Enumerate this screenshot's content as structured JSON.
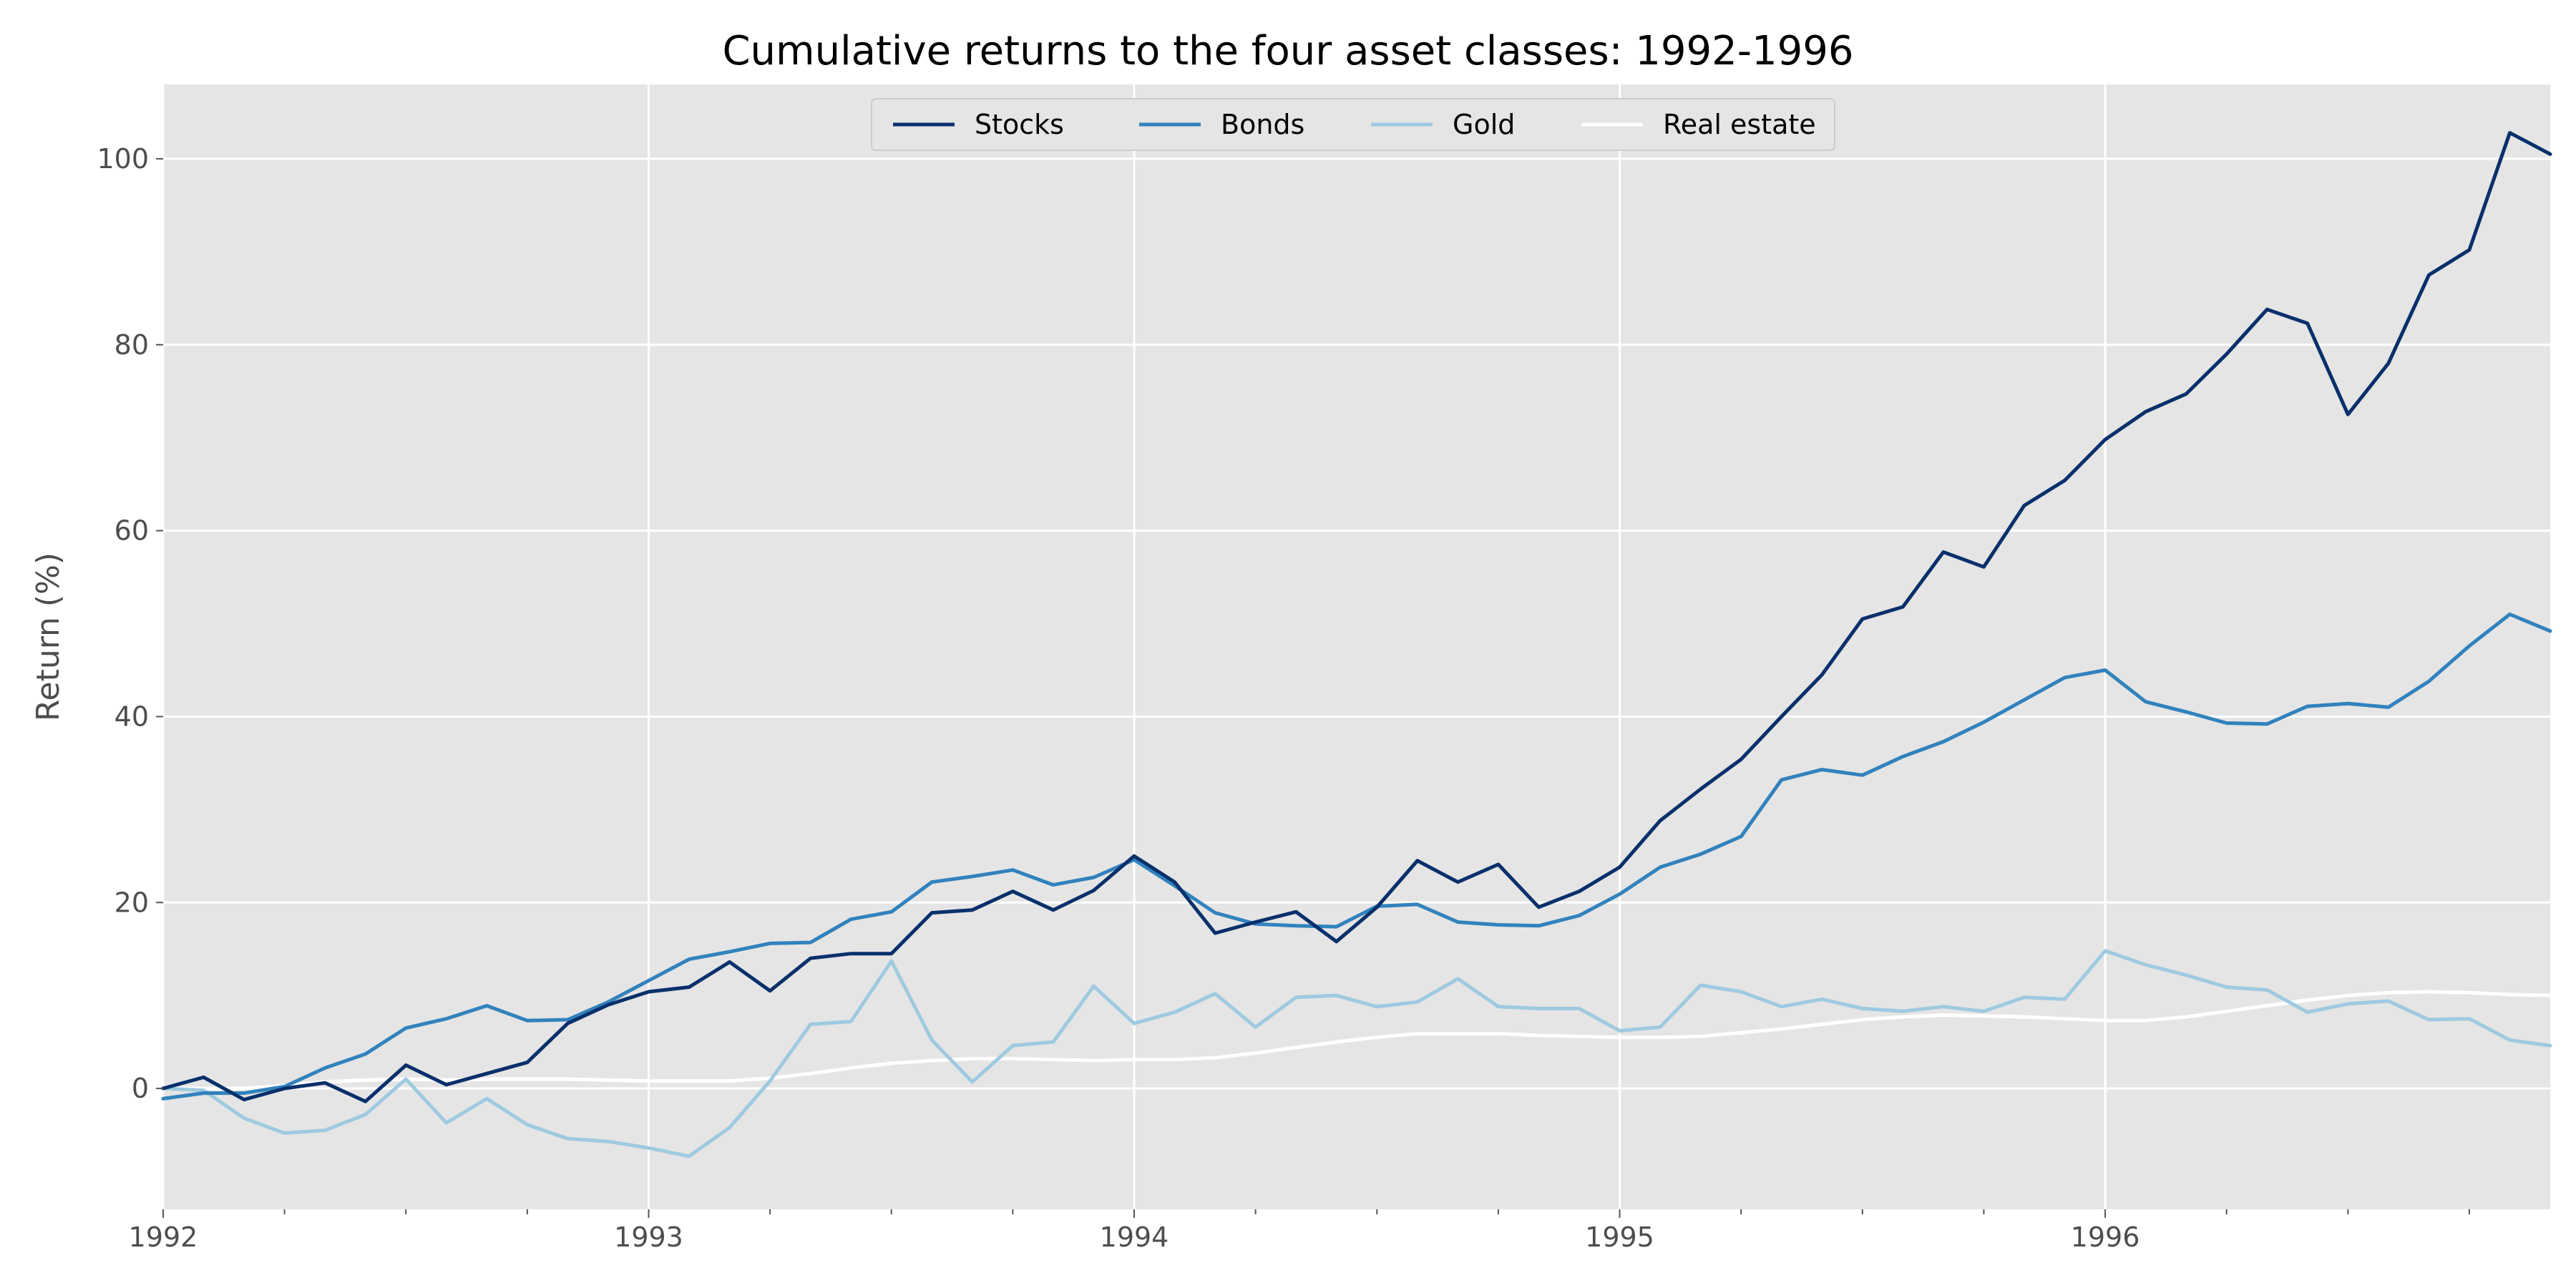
{
  "chart_data": {
    "type": "line",
    "title": "Cumulative returns to the four asset classes: 1992-1996",
    "xlabel": "",
    "ylabel": "Return (%)",
    "x_start": "1992-01",
    "x_end": "1996-12",
    "xlim": [
      "1992-01",
      "1996-12"
    ],
    "ylim": [
      -13,
      108
    ],
    "x_ticks": [
      "1992",
      "1993",
      "1994",
      "1995",
      "1996"
    ],
    "y_ticks": [
      0,
      20,
      40,
      60,
      80,
      100
    ],
    "grid": true,
    "legend": {
      "placement": "top-center",
      "columns": 4
    },
    "series": [
      {
        "name": "Stocks",
        "color": "#08306b",
        "values": [
          0,
          1.2,
          -1.2,
          0,
          0.6,
          -1.4,
          2.5,
          0.4,
          1.6,
          2.8,
          7.0,
          9.0,
          10.4,
          10.9,
          13.6,
          10.5,
          14.0,
          14.5,
          14.5,
          18.9,
          19.2,
          21.2,
          19.2,
          21.3,
          25.0,
          22.2,
          16.7,
          17.9,
          19.0,
          15.8,
          19.5,
          24.5,
          22.2,
          24.1,
          19.5,
          21.2,
          23.8,
          28.8,
          32.2,
          35.4,
          40.0,
          44.5,
          50.5,
          51.8,
          57.7,
          56.1,
          62.7,
          65.4,
          69.8,
          72.8,
          74.7,
          79.0,
          83.8,
          82.3,
          72.5,
          78.0,
          87.5,
          90.2,
          102.8,
          100.5
        ]
      },
      {
        "name": "Bonds",
        "color": "#3182bd",
        "values": [
          -1.1,
          -0.5,
          -0.5,
          0.2,
          2.2,
          3.7,
          6.5,
          7.5,
          8.9,
          7.3,
          7.4,
          9.3,
          11.6,
          13.9,
          14.7,
          15.6,
          15.7,
          18.2,
          19.0,
          22.2,
          22.8,
          23.5,
          21.9,
          22.7,
          24.6,
          21.8,
          18.9,
          17.7,
          17.5,
          17.4,
          19.6,
          19.8,
          17.9,
          17.6,
          17.5,
          18.6,
          20.9,
          23.8,
          25.2,
          27.1,
          33.2,
          34.3,
          33.7,
          35.7,
          37.3,
          39.4,
          41.8,
          44.2,
          45.0,
          41.6,
          40.5,
          39.3,
          39.2,
          41.1,
          41.4,
          41.0,
          43.8,
          47.6,
          51.0,
          49.2
        ]
      },
      {
        "name": "Gold",
        "color": "#9ecae1",
        "values": [
          0,
          -0.2,
          -3.2,
          -4.8,
          -4.5,
          -2.8,
          1.0,
          -3.7,
          -1.1,
          -3.9,
          -5.4,
          -5.7,
          -6.4,
          -7.3,
          -4.2,
          0.8,
          6.9,
          7.2,
          13.7,
          5.2,
          0.7,
          4.6,
          5.0,
          11.0,
          7.0,
          8.2,
          10.2,
          6.6,
          9.8,
          10.0,
          8.8,
          9.3,
          11.8,
          8.8,
          8.6,
          8.6,
          6.2,
          6.6,
          11.1,
          10.4,
          8.8,
          9.6,
          8.6,
          8.3,
          8.8,
          8.3,
          9.8,
          9.6,
          14.8,
          13.3,
          12.2,
          10.9,
          10.6,
          8.2,
          9.1,
          9.4,
          7.4,
          7.5,
          5.2,
          4.6
        ]
      },
      {
        "name": "Real estate",
        "color": "#ffffff",
        "values": [
          0,
          0,
          0,
          0.3,
          0.7,
          0.9,
          1.0,
          0.9,
          1.0,
          1.0,
          1.0,
          0.9,
          0.8,
          0.8,
          0.8,
          1.1,
          1.6,
          2.2,
          2.7,
          3.0,
          3.2,
          3.2,
          3.1,
          3.0,
          3.1,
          3.1,
          3.3,
          3.8,
          4.4,
          5.0,
          5.5,
          5.9,
          5.9,
          5.9,
          5.7,
          5.6,
          5.5,
          5.5,
          5.6,
          6.0,
          6.4,
          6.9,
          7.4,
          7.7,
          7.9,
          7.8,
          7.7,
          7.5,
          7.3,
          7.3,
          7.7,
          8.3,
          8.9,
          9.5,
          10.0,
          10.3,
          10.4,
          10.3,
          10.1,
          10.0
        ]
      }
    ]
  }
}
